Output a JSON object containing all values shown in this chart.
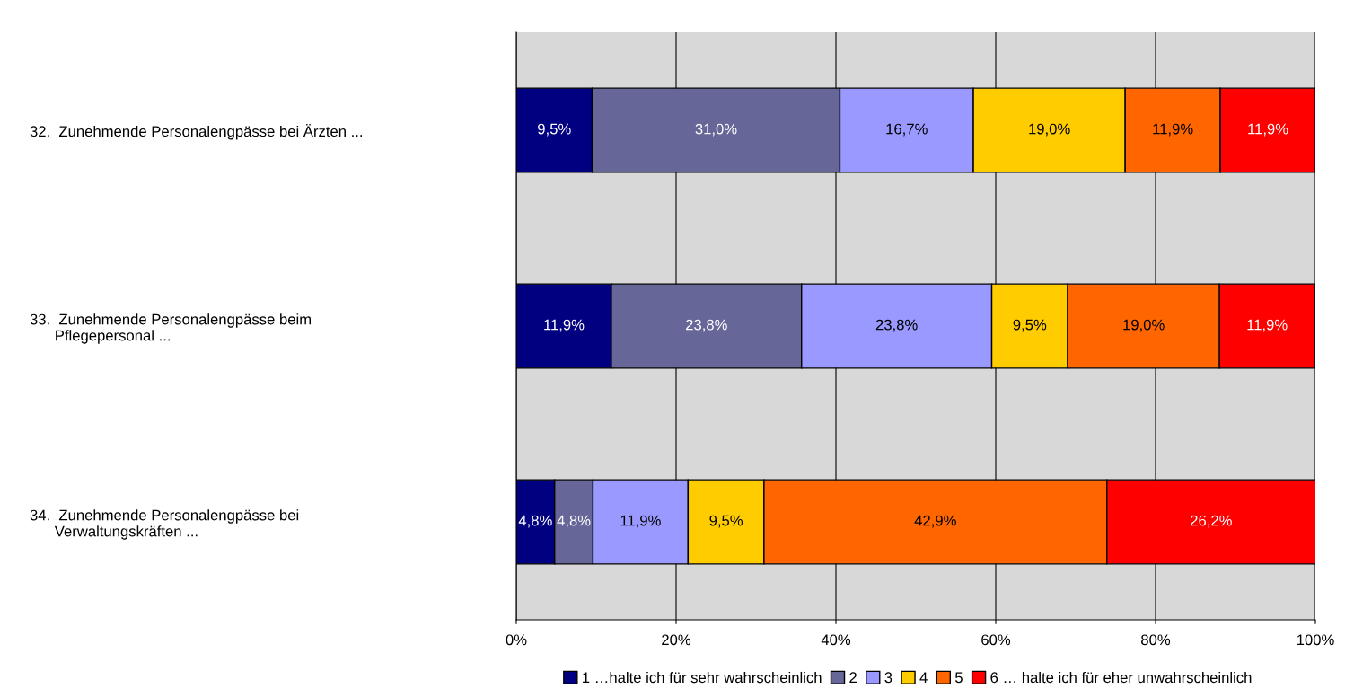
{
  "chart_data": {
    "type": "bar",
    "orientation": "horizontal",
    "stacked": true,
    "categories": [
      "32.  Zunehmende Personalengpässe bei Ärzten ...",
      "33.  Zunehmende Personalengpässe beim\n      Pflegepersonal ...",
      "34.  Zunehmende Personalengpässe bei\n      Verwaltungskräften ..."
    ],
    "series": [
      {
        "name": "1 …halte ich für sehr wahrscheinlich",
        "color": "#000080",
        "values": [
          9.5,
          11.9,
          4.8
        ],
        "value_labels": [
          "9,5%",
          "11,9%",
          "4,8%"
        ]
      },
      {
        "name": "2",
        "color": "#666699",
        "values": [
          31.0,
          23.8,
          4.8
        ],
        "value_labels": [
          "31,0%",
          "23,8%",
          "4,8%"
        ]
      },
      {
        "name": "3",
        "color": "#9999ff",
        "values": [
          16.7,
          23.8,
          11.9
        ],
        "value_labels": [
          "16,7%",
          "23,8%",
          "11,9%"
        ]
      },
      {
        "name": "4",
        "color": "#ffcc00",
        "values": [
          19.0,
          9.5,
          9.5
        ],
        "value_labels": [
          "19,0%",
          "9,5%",
          "9,5%"
        ]
      },
      {
        "name": "5",
        "color": "#ff6600",
        "values": [
          11.9,
          19.0,
          42.9
        ],
        "value_labels": [
          "11,9%",
          "19,0%",
          "42,9%"
        ]
      },
      {
        "name": "6 … halte ich für eher unwahrscheinlich",
        "color": "#ff0000",
        "values": [
          11.9,
          11.9,
          26.2
        ],
        "value_labels": [
          "11,9%",
          "11,9%",
          "26,2%"
        ]
      }
    ],
    "xlim": [
      0,
      100
    ],
    "xticks": [
      {
        "value": 0,
        "label": "0%"
      },
      {
        "value": 20,
        "label": "20%"
      },
      {
        "value": 40,
        "label": "40%"
      },
      {
        "value": 60,
        "label": "60%"
      },
      {
        "value": 80,
        "label": "80%"
      },
      {
        "value": 100,
        "label": "100%"
      }
    ],
    "grid": "x",
    "legend": "bottom"
  }
}
